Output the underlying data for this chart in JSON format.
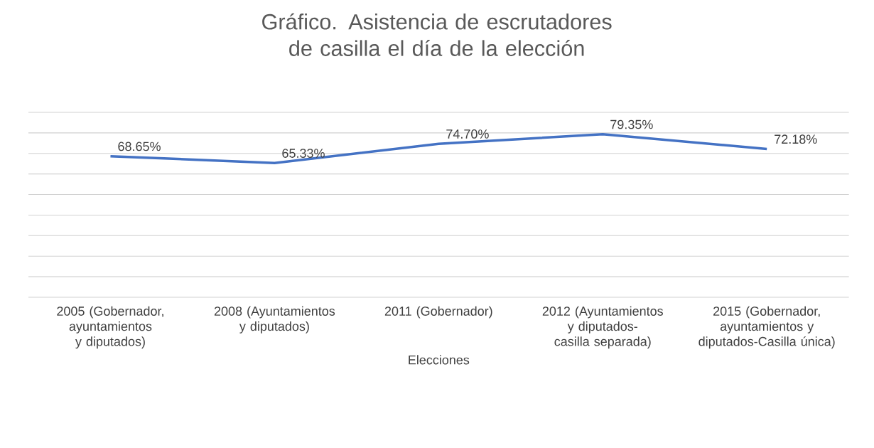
{
  "chart_data": {
    "type": "line",
    "title": "Gráfico. Asistencia de escrutadores de casilla el día de la elección",
    "xlabel": "Elecciones",
    "categories": [
      "2005 (Gobernador, ayuntamientos y diputados)",
      "2008 (Ayuntamientos y diputados)",
      "2011 (Gobernador)",
      "2012 (Ayuntamientos y diputados-casilla separada)",
      "2015 (Gobernador, ayuntamientos y diputados-Casilla única)"
    ],
    "values": [
      68.65,
      65.33,
      74.7,
      79.35,
      72.18
    ],
    "value_labels": [
      "68.65%",
      "65.33%",
      "74.70%",
      "79.35%",
      "72.18%"
    ],
    "color": "#4472c4",
    "marker": "none",
    "line_style": "solid",
    "ylim": [
      0,
      90
    ],
    "yticks": [
      {
        "value": 0,
        "label": null
      },
      {
        "value": 10,
        "label": null
      },
      {
        "value": 20,
        "label": null
      },
      {
        "value": 30,
        "label": null
      },
      {
        "value": 40,
        "label": null
      },
      {
        "value": 50,
        "label": null
      },
      {
        "value": 60,
        "label": null
      },
      {
        "value": 70,
        "label": null
      },
      {
        "value": 80,
        "label": null
      },
      {
        "value": 90,
        "label": null
      }
    ],
    "tick_labels": "x",
    "grid": "y"
  }
}
